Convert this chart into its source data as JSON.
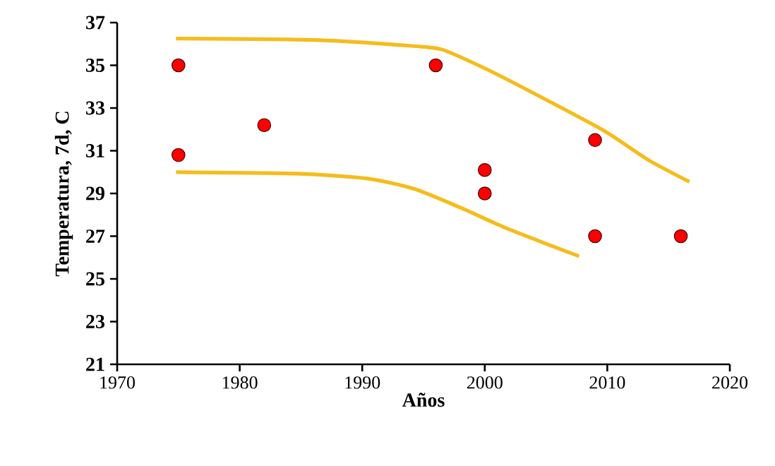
{
  "chart_data": {
    "type": "scatter",
    "xlabel": "Años",
    "ylabel": "Temperatura, 7d, C",
    "xlim": [
      1970,
      2020
    ],
    "xticks": [
      1970,
      1980,
      1990,
      2000,
      2010,
      2020
    ],
    "ylim": [
      21,
      37
    ],
    "yticks": [
      21,
      23,
      25,
      27,
      29,
      31,
      33,
      35,
      37
    ],
    "grid": false,
    "series": [
      {
        "color": "#ff0000",
        "marker": "circle",
        "x": [
          1975,
          1975,
          1982,
          1996,
          2000,
          2000,
          2009,
          2009,
          2016
        ],
        "values": [
          35,
          30.8,
          32.2,
          35,
          30.1,
          29,
          31.5,
          27,
          27
        ]
      },
      {
        "type": "line",
        "color": "#f5bc1c",
        "marker": "none",
        "line_style": "solid",
        "x": [
          1974.8,
          1986.5,
          1994.2,
          1996.5,
          2000,
          2003.8,
          2009.6,
          2013.4,
          2016.7
        ],
        "values": [
          36.25,
          36.18,
          35.9,
          35.74,
          34.86,
          33.75,
          31.98,
          30.55,
          29.55
        ]
      },
      {
        "type": "line",
        "color": "#f5bc1c",
        "marker": "none",
        "line_style": "solid",
        "x": [
          1974.8,
          1984.6,
          1990.4,
          1994.2,
          1998,
          2001.9,
          2007.7
        ],
        "values": [
          30,
          29.93,
          29.7,
          29.22,
          28.34,
          27.34,
          26.06
        ]
      }
    ]
  }
}
